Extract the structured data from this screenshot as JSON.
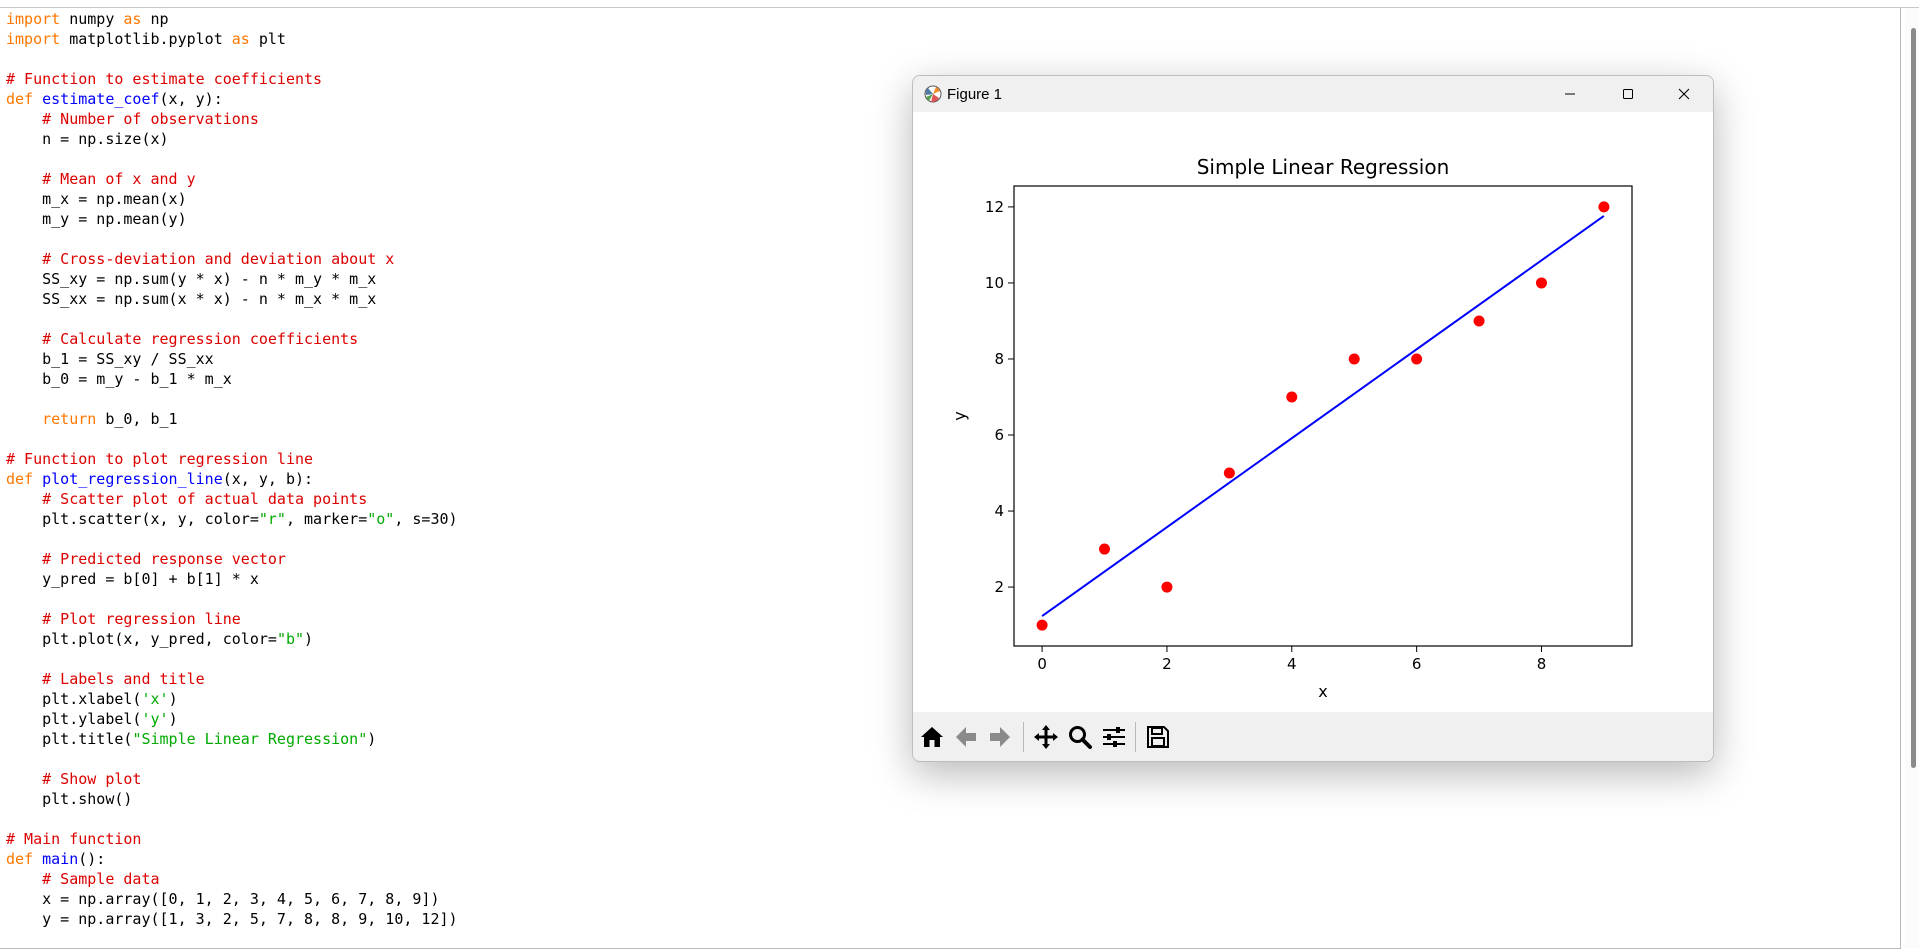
{
  "editor": {
    "lines": [
      [
        [
          "kw",
          "import"
        ],
        [
          "t",
          " numpy "
        ],
        [
          "kw",
          "as"
        ],
        [
          "t",
          " np"
        ]
      ],
      [
        [
          "kw",
          "import"
        ],
        [
          "t",
          " matplotlib.pyplot "
        ],
        [
          "kw",
          "as"
        ],
        [
          "t",
          " plt"
        ]
      ],
      [],
      [
        [
          "cm",
          "# Function to estimate coefficients"
        ]
      ],
      [
        [
          "kw",
          "def"
        ],
        [
          "t",
          " "
        ],
        [
          "fn",
          "estimate_coef"
        ],
        [
          "t",
          "(x, y):"
        ]
      ],
      [
        [
          "t",
          "    "
        ],
        [
          "cm",
          "# Number of observations"
        ]
      ],
      [
        [
          "t",
          "    n = np.size(x)"
        ]
      ],
      [],
      [
        [
          "t",
          "    "
        ],
        [
          "cm",
          "# Mean of x and y"
        ]
      ],
      [
        [
          "t",
          "    m_x = np.mean(x)"
        ]
      ],
      [
        [
          "t",
          "    m_y = np.mean(y)"
        ]
      ],
      [],
      [
        [
          "t",
          "    "
        ],
        [
          "cm",
          "# Cross-deviation and deviation about x"
        ]
      ],
      [
        [
          "t",
          "    SS_xy = np.sum(y * x) - n * m_y * m_x"
        ]
      ],
      [
        [
          "t",
          "    SS_xx = np.sum(x * x) - n * m_x * m_x"
        ]
      ],
      [],
      [
        [
          "t",
          "    "
        ],
        [
          "cm",
          "# Calculate regression coefficients"
        ]
      ],
      [
        [
          "t",
          "    b_1 = SS_xy / SS_xx"
        ]
      ],
      [
        [
          "t",
          "    b_0 = m_y - b_1 * m_x"
        ]
      ],
      [],
      [
        [
          "t",
          "    "
        ],
        [
          "kw",
          "return"
        ],
        [
          "t",
          " b_0, b_1"
        ]
      ],
      [],
      [
        [
          "cm",
          "# Function to plot regression line"
        ]
      ],
      [
        [
          "kw",
          "def"
        ],
        [
          "t",
          " "
        ],
        [
          "fn",
          "plot_regression_line"
        ],
        [
          "t",
          "(x, y, b):"
        ]
      ],
      [
        [
          "t",
          "    "
        ],
        [
          "cm",
          "# Scatter plot of actual data points"
        ]
      ],
      [
        [
          "t",
          "    plt.scatter(x, y, color="
        ],
        [
          "st",
          "\"r\""
        ],
        [
          "t",
          ", marker="
        ],
        [
          "st",
          "\"o\""
        ],
        [
          "t",
          ", s=30)"
        ]
      ],
      [],
      [
        [
          "t",
          "    "
        ],
        [
          "cm",
          "# Predicted response vector"
        ]
      ],
      [
        [
          "t",
          "    y_pred = b[0] + b[1] * x"
        ]
      ],
      [],
      [
        [
          "t",
          "    "
        ],
        [
          "cm",
          "# Plot regression line"
        ]
      ],
      [
        [
          "t",
          "    plt.plot(x, y_pred, color="
        ],
        [
          "st",
          "\"b\""
        ],
        [
          "t",
          ")"
        ]
      ],
      [],
      [
        [
          "t",
          "    "
        ],
        [
          "cm",
          "# Labels and title"
        ]
      ],
      [
        [
          "t",
          "    plt.xlabel("
        ],
        [
          "st",
          "'x'"
        ],
        [
          "t",
          ")"
        ]
      ],
      [
        [
          "t",
          "    plt.ylabel("
        ],
        [
          "st",
          "'y'"
        ],
        [
          "t",
          ")"
        ]
      ],
      [
        [
          "t",
          "    plt.title("
        ],
        [
          "st",
          "\"Simple Linear Regression\""
        ],
        [
          "t",
          ")"
        ]
      ],
      [],
      [
        [
          "t",
          "    "
        ],
        [
          "cm",
          "# Show plot"
        ]
      ],
      [
        [
          "t",
          "    plt.show()"
        ]
      ],
      [],
      [
        [
          "cm",
          "# Main function"
        ]
      ],
      [
        [
          "kw",
          "def"
        ],
        [
          "t",
          " "
        ],
        [
          "fn",
          "main"
        ],
        [
          "t",
          "():"
        ]
      ],
      [
        [
          "t",
          "    "
        ],
        [
          "cm",
          "# Sample data"
        ]
      ],
      [
        [
          "t",
          "    x = np.array([0, 1, 2, 3, 4, 5, 6, 7, 8, 9])"
        ]
      ],
      [
        [
          "t",
          "    y = np.array([1, 3, 2, 5, 7, 8, 8, 9, 10, 12])"
        ]
      ]
    ]
  },
  "window": {
    "title": "Figure 1",
    "icons": {
      "app": "matplotlib-icon",
      "minimize": "minimize-icon",
      "maximize": "maximize-icon",
      "close": "close-icon"
    }
  },
  "toolbar": {
    "buttons": [
      "home-icon",
      "back-arrow-icon",
      "forward-arrow-icon",
      "pan-icon",
      "zoom-icon",
      "configure-subplots-icon",
      "save-icon"
    ]
  },
  "colors": {
    "keyword": "#ff7700",
    "function": "#0000ff",
    "comment": "#dd0000",
    "string": "#00aa00",
    "scatter": "#ff0000",
    "regression_line": "#0000ff"
  },
  "chart_data": {
    "type": "scatter",
    "title": "Simple Linear Regression",
    "xlabel": "x",
    "ylabel": "y",
    "x": [
      0,
      1,
      2,
      3,
      4,
      5,
      6,
      7,
      8,
      9
    ],
    "y": [
      1,
      3,
      2,
      5,
      7,
      8,
      8,
      9,
      10,
      12
    ],
    "line": {
      "x": [
        0,
        9
      ],
      "y": [
        1.236,
        11.764
      ]
    },
    "xlim": [
      -0.45,
      9.45
    ],
    "ylim": [
      0.45,
      12.55
    ],
    "xticks": [
      0,
      2,
      4,
      6,
      8
    ],
    "yticks": [
      2,
      4,
      6,
      8,
      10,
      12
    ],
    "grid": false
  }
}
